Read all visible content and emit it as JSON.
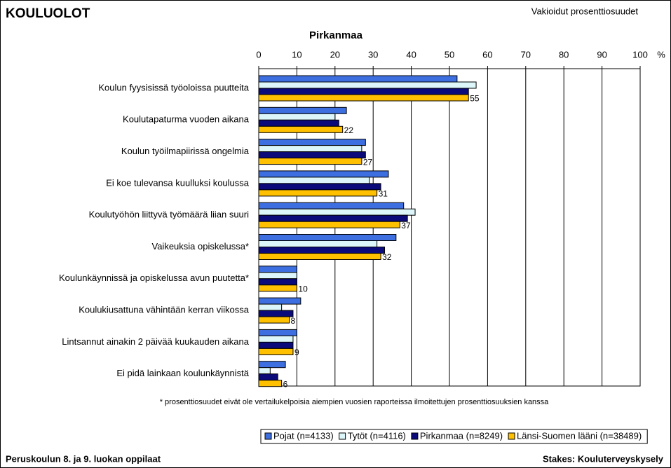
{
  "chart_data": {
    "type": "hbar",
    "title": "KOULUOLOT",
    "subtitle": "Vakioidut prosenttiosuudet",
    "chart_title": "Pirkanmaa",
    "x_unit": "%",
    "xlim": [
      0,
      100
    ],
    "xticks": [
      0,
      10,
      20,
      30,
      40,
      50,
      60,
      70,
      80,
      90,
      100
    ],
    "grid": true,
    "legend": "bottom",
    "categories": [
      "Koulun fyysisissä työoloissa puutteita",
      "Koulutapaturma vuoden aikana",
      "Koulun työilmapiirissä ongelmia",
      "Ei koe tulevansa kuulluksi koulussa",
      "Koulutyöhön liittyvä työmäärä liian suuri",
      "Vaikeuksia opiskelussa*",
      "Koulunkäynnissä ja opiskelussa avun puutetta*",
      "Koulukiusattuna vähintään kerran viikossa",
      "Lintsannut ainakin 2 päivää kuukauden aikana",
      "Ei pidä lainkaan koulunkäynnistä"
    ],
    "series": [
      {
        "name": "Pojat (n=4133)",
        "color": "#3d6fe0",
        "values": [
          52,
          23,
          28,
          34,
          38,
          36,
          10,
          11,
          10,
          7
        ]
      },
      {
        "name": "Tytöt (n=4116)",
        "color": "#dcf6fa",
        "values": [
          57,
          20,
          27,
          29,
          41,
          31,
          10,
          6,
          9,
          3
        ]
      },
      {
        "name": "Pirkanmaa (n=8249)",
        "color": "#0a0a7a",
        "values": [
          55,
          21,
          28,
          32,
          39,
          33,
          10,
          9,
          9,
          5
        ]
      },
      {
        "name": "Länsi-Suomen lääni (n=38489)",
        "color": "#ffc000",
        "values": [
          55,
          22,
          27,
          31,
          37,
          32,
          10,
          8,
          9,
          6
        ],
        "labeled": true
      }
    ],
    "footnote": "* prosenttiosuudet eivät ole vertailukelpoisia aiempien vuosien raporteissa ilmoitettujen prosenttiosuuksien kanssa",
    "footer_left": "Peruskoulun 8. ja 9. luokan oppilaat",
    "footer_right": "Stakes: Kouluterveyskysely"
  }
}
